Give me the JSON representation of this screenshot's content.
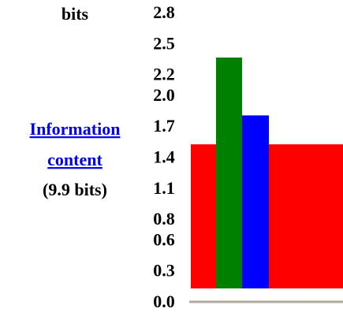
{
  "chart_data": {
    "type": "bar",
    "y_label": "bits",
    "link_line1": "Information",
    "link_line2": "content",
    "total": "(9.9 bits)",
    "ylim": [
      0,
      2.8
    ],
    "yticks": [
      2.8,
      2.5,
      2.2,
      {
        "value": 2,
        "label": "2.0"
      },
      1.7,
      1.4,
      1.1,
      0.8,
      0.6,
      0.3,
      {
        "value": 0,
        "label": "0.0"
      }
    ],
    "bars": [
      {
        "color": "#ff0000",
        "value": 1.54
      },
      {
        "color": "#008000",
        "value": 2.38
      },
      {
        "color": "#0000ff",
        "value": 1.82
      }
    ],
    "baseline_color": "#b0aa9e"
  }
}
